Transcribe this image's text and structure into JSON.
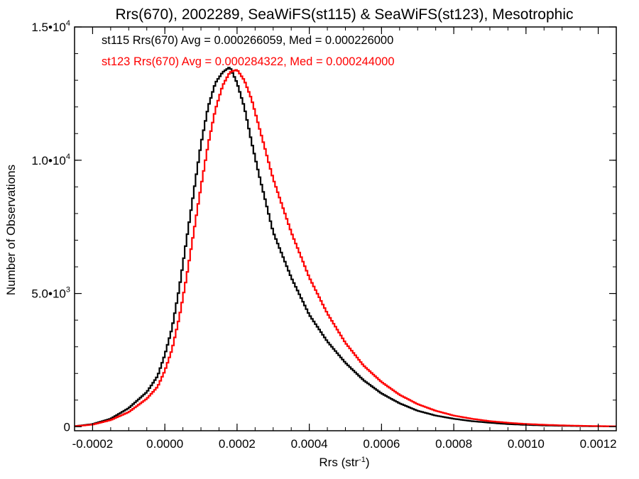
{
  "chart_data": {
    "type": "line",
    "step": true,
    "title": "Rrs(670), 2002289, SeaWiFS(st115) & SeaWiFS(st123), Mesotrophic",
    "xlabel": "Rrs (str",
    "xlabel_sup": "-1",
    "xlabel_close": ")",
    "ylabel": "Number of Observations",
    "xlim": [
      -0.00025,
      0.00125
    ],
    "ylim": [
      -150,
      15000
    ],
    "grid": false,
    "x_ticks": [
      {
        "value": -0.0002,
        "label": "-0.0002"
      },
      {
        "value": 0.0,
        "label": "0.0000"
      },
      {
        "value": 0.0002,
        "label": "0.0002"
      },
      {
        "value": 0.0004,
        "label": "0.0004"
      },
      {
        "value": 0.0006,
        "label": "0.0006"
      },
      {
        "value": 0.0008,
        "label": "0.0008"
      },
      {
        "value": 0.001,
        "label": "0.0010"
      },
      {
        "value": 0.0012,
        "label": "0.0012"
      }
    ],
    "y_ticks": [
      {
        "value": 0,
        "base": "0",
        "exp": ""
      },
      {
        "value": 5000,
        "base": "5.0•10",
        "exp": "3"
      },
      {
        "value": 10000,
        "base": "1.0•10",
        "exp": "4"
      },
      {
        "value": 15000,
        "base": "1.5•10",
        "exp": "4"
      }
    ],
    "annotations": [
      {
        "text": "st115 Rrs(670) Avg = 0.000266059, Med = 0.000226000",
        "color": "#000000"
      },
      {
        "text": "st123 Rrs(670) Avg = 0.000284322, Med = 0.000244000",
        "color": "#ff0000"
      }
    ],
    "series": [
      {
        "color": "#000000",
        "x": [
          -0.00025,
          -0.0002,
          -0.00015,
          -0.0001,
          -5e-05,
          -2e-05,
          0.0,
          2e-05,
          4e-05,
          6e-05,
          8e-05,
          0.0001,
          0.00012,
          0.00014,
          0.00016,
          0.00018,
          0.0002,
          0.00022,
          0.00024,
          0.00026,
          0.00028,
          0.0003,
          0.00035,
          0.0004,
          0.00045,
          0.0005,
          0.00055,
          0.0006,
          0.00065,
          0.0007,
          0.00075,
          0.0008,
          0.00085,
          0.0009,
          0.00095,
          0.001,
          0.00105,
          0.0011,
          0.00115,
          0.0012,
          0.00125
        ],
        "y": [
          20,
          100,
          300,
          700,
          1300,
          1900,
          2700,
          3700,
          5200,
          7000,
          8800,
          10600,
          12000,
          12900,
          13300,
          13500,
          12900,
          12000,
          10700,
          9500,
          8400,
          7300,
          5600,
          4200,
          3200,
          2400,
          1750,
          1250,
          880,
          600,
          420,
          300,
          210,
          150,
          100,
          70,
          50,
          35,
          25,
          18,
          12
        ]
      },
      {
        "color": "#ff0000",
        "x": [
          -0.00025,
          -0.0002,
          -0.00015,
          -0.0001,
          -5e-05,
          -2e-05,
          0.0,
          2e-05,
          4e-05,
          6e-05,
          8e-05,
          0.0001,
          0.00012,
          0.00014,
          0.00016,
          0.00018,
          0.0002,
          0.00022,
          0.00024,
          0.00026,
          0.00028,
          0.0003,
          0.00035,
          0.0004,
          0.00045,
          0.0005,
          0.00055,
          0.0006,
          0.00065,
          0.0007,
          0.00075,
          0.0008,
          0.00085,
          0.0009,
          0.00095,
          0.001,
          0.00105,
          0.0011,
          0.00115,
          0.0012,
          0.00125
        ],
        "y": [
          15,
          80,
          250,
          550,
          1050,
          1500,
          2100,
          2900,
          4100,
          5600,
          7300,
          9000,
          10600,
          11900,
          12800,
          13300,
          13400,
          13000,
          12300,
          11300,
          10300,
          9300,
          7300,
          5600,
          4250,
          3150,
          2300,
          1680,
          1200,
          850,
          600,
          420,
          300,
          210,
          150,
          105,
          75,
          52,
          36,
          25,
          17
        ]
      }
    ]
  }
}
